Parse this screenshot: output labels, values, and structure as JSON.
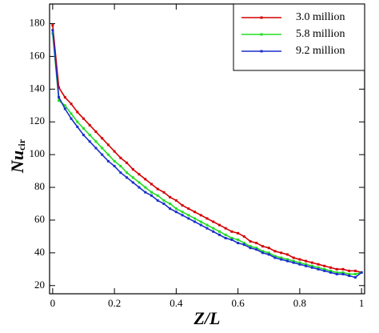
{
  "chart_data": {
    "type": "line",
    "x_label": "Z/L",
    "y_label": "Nu",
    "y_label_sub": "cir",
    "x": [
      0,
      0.02,
      0.04,
      0.06,
      0.08,
      0.1,
      0.12,
      0.14,
      0.16,
      0.18,
      0.2,
      0.22,
      0.24,
      0.26,
      0.28,
      0.3,
      0.32,
      0.34,
      0.36,
      0.38,
      0.4,
      0.42,
      0.44,
      0.46,
      0.48,
      0.5,
      0.52,
      0.54,
      0.56,
      0.58,
      0.6,
      0.62,
      0.64,
      0.66,
      0.68,
      0.7,
      0.72,
      0.74,
      0.76,
      0.78,
      0.8,
      0.82,
      0.84,
      0.86,
      0.88,
      0.9,
      0.92,
      0.94,
      0.96,
      0.98,
      1.0
    ],
    "series": [
      {
        "name": "3.0 million",
        "color": "#d40000",
        "values": [
          179,
          141,
          135,
          131,
          126,
          122,
          118,
          114,
          110,
          106,
          102,
          98,
          95,
          91,
          88,
          85,
          82,
          79,
          77,
          74,
          72,
          69,
          67,
          65,
          63,
          61,
          59,
          57,
          55,
          53,
          52,
          50,
          47,
          46,
          44,
          43,
          41,
          40,
          39,
          37,
          36,
          35,
          34,
          33,
          32,
          31,
          30,
          30,
          29,
          29,
          28
        ]
      },
      {
        "name": "5.8 million",
        "color": "#22dd22",
        "values": [
          174,
          133,
          130,
          125,
          120,
          116,
          112,
          108,
          104,
          100,
          96,
          93,
          89,
          86,
          83,
          80,
          77,
          75,
          72,
          70,
          67,
          65,
          63,
          61,
          59,
          57,
          55,
          53,
          51,
          49,
          48,
          46,
          44,
          43,
          41,
          40,
          38,
          37,
          36,
          35,
          34,
          33,
          32,
          31,
          30,
          29,
          28,
          28,
          27,
          27,
          28
        ]
      },
      {
        "name": "9.2 million",
        "color": "#1a2fcc",
        "values": [
          176,
          135,
          128,
          122,
          117,
          112,
          108,
          104,
          100,
          96,
          93,
          89,
          86,
          83,
          80,
          77,
          75,
          72,
          70,
          67,
          65,
          63,
          61,
          59,
          57,
          55,
          53,
          51,
          49,
          48,
          46,
          45,
          43,
          42,
          40,
          39,
          37,
          36,
          35,
          34,
          33,
          32,
          31,
          30,
          29,
          28,
          27,
          27,
          26,
          25,
          28
        ]
      }
    ],
    "xlim": [
      -0.01,
      1.01
    ],
    "xticks": [
      0,
      0.2,
      0.4,
      0.6,
      0.8,
      1
    ],
    "ylim": [
      15,
      192
    ],
    "yticks": [
      20,
      40,
      60,
      80,
      100,
      120,
      140,
      160,
      180
    ],
    "legend": "upper right",
    "markers": true
  }
}
